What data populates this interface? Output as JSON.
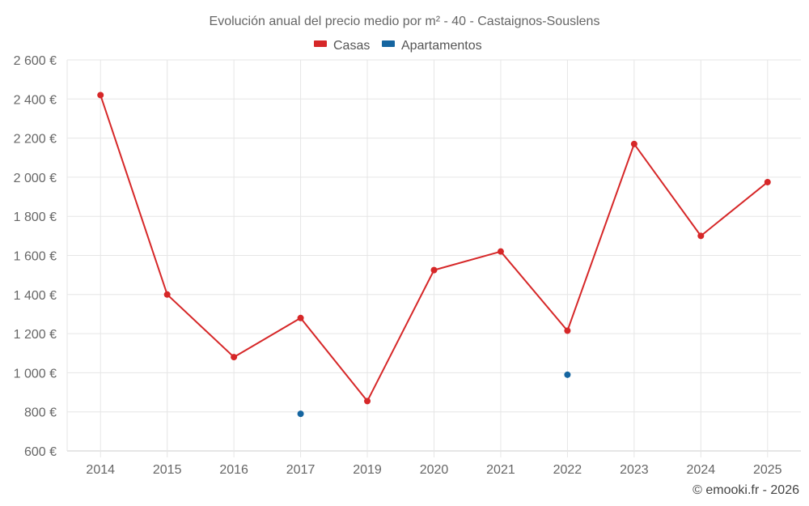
{
  "chart_data": {
    "type": "line",
    "title": "Evolución anual del precio medio por m² - 40 - Castaignos-Souslens",
    "categories": [
      "2014",
      "2015",
      "2016",
      "2017",
      "2019",
      "2020",
      "2021",
      "2022",
      "2023",
      "2024",
      "2025"
    ],
    "y_ticks": [
      "600 €",
      "800 €",
      "1 000 €",
      "1 200 €",
      "1 400 €",
      "1 600 €",
      "1 800 €",
      "2 000 €",
      "2 200 €",
      "2 400 €",
      "2 600 €"
    ],
    "ylim": [
      600,
      2600
    ],
    "xlabel": "",
    "ylabel": "",
    "grid": true,
    "legend_position": "top-center",
    "series": [
      {
        "name": "Casas",
        "color": "#d62728",
        "values": [
          2420,
          1400,
          1080,
          1280,
          855,
          1525,
          1620,
          1215,
          2170,
          1700,
          1975
        ]
      },
      {
        "name": "Apartamentos",
        "color": "#1565a0",
        "values": [
          null,
          null,
          null,
          790,
          null,
          null,
          null,
          990,
          null,
          null,
          null
        ]
      }
    ]
  },
  "credit": "© emooki.fr - 2026"
}
